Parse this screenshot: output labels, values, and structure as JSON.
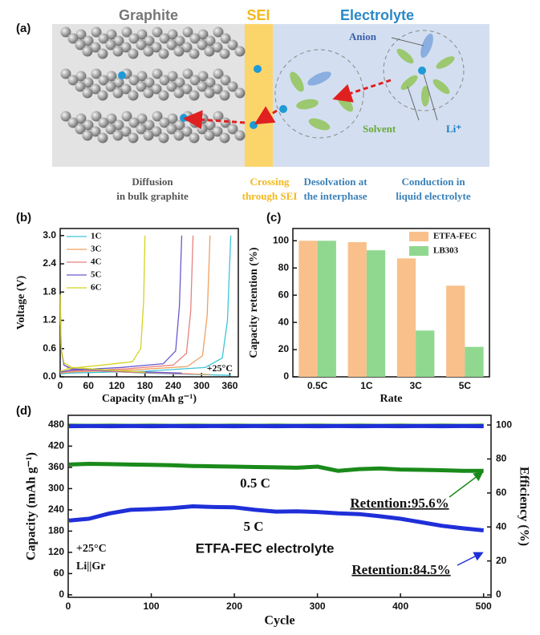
{
  "figure": {
    "panel_labels": [
      "(a)",
      "(b)",
      "(c)",
      "(d)"
    ]
  },
  "diagram": {
    "regions": [
      "Graphite",
      "SEI",
      "Electrolyte"
    ],
    "labels": [
      "Anion",
      "Solvent",
      "Li⁺"
    ],
    "captions": [
      [
        "Diffusion",
        "in bulk graphite"
      ],
      [
        "Crossing",
        "through SEI"
      ],
      [
        "Desolvation at",
        "the interphase"
      ],
      [
        "Conduction in",
        "liquid electrolyte"
      ]
    ]
  },
  "chart_data": [
    {
      "type": "line",
      "xlabel": "Capacity (mAh g⁻¹)",
      "ylabel": "Voltage (V)",
      "xlim": [
        0,
        378
      ],
      "xticks": [
        0,
        60,
        120,
        180,
        240,
        300,
        360
      ],
      "ylim": [
        0,
        3.15
      ],
      "yticks": [
        {
          "value": 0,
          "label": "0.0"
        },
        0.6,
        1.2,
        1.8,
        2.4,
        {
          "value": 3,
          "label": "3.0"
        }
      ],
      "legend": "upper left",
      "annotations": [
        {
          "text": "+25°C",
          "color": "#111"
        }
      ],
      "series": [
        {
          "name": "1C",
          "color": "#3ec5d8",
          "x": [
            0,
            2,
            8,
            25,
            181,
            362,
            null,
            0,
            20,
            181,
            308,
            344,
            355,
            362
          ],
          "values": [
            1.55,
            0.6,
            0.25,
            0.15,
            0.08,
            0.03,
            null,
            0.06,
            0.08,
            0.12,
            0.2,
            0.4,
            1.2,
            3.0
          ]
        },
        {
          "name": "3C",
          "color": "#f0a060",
          "x": [
            0,
            2,
            8,
            25,
            159,
            318,
            null,
            0,
            20,
            159,
            270,
            302,
            312,
            318
          ],
          "values": [
            1.6,
            0.6,
            0.25,
            0.15,
            0.1,
            0.05,
            null,
            0.08,
            0.1,
            0.15,
            0.22,
            0.45,
            1.3,
            3.0
          ]
        },
        {
          "name": "4C",
          "color": "#e88080",
          "x": [
            0,
            2,
            8,
            25,
            141,
            282,
            null,
            0,
            20,
            141,
            240,
            268,
            277,
            282
          ],
          "values": [
            1.65,
            0.6,
            0.25,
            0.15,
            0.1,
            0.06,
            null,
            0.1,
            0.12,
            0.17,
            0.25,
            0.5,
            1.4,
            3.0
          ]
        },
        {
          "name": "5C",
          "color": "#6a5acd",
          "x": [
            0,
            2,
            8,
            25,
            129,
            258,
            null,
            0,
            20,
            129,
            219,
            245,
            253,
            258
          ],
          "values": [
            1.7,
            0.6,
            0.25,
            0.17,
            0.12,
            0.08,
            null,
            0.1,
            0.14,
            0.2,
            0.28,
            0.55,
            1.5,
            3.0
          ]
        },
        {
          "name": "6C",
          "color": "#d4d420",
          "x": [
            0,
            2,
            8,
            25,
            90,
            180,
            null,
            0,
            20,
            90,
            153,
            171,
            177,
            180
          ],
          "values": [
            1.75,
            0.6,
            0.3,
            0.2,
            0.15,
            0.1,
            null,
            0.12,
            0.18,
            0.25,
            0.32,
            0.6,
            1.6,
            3.0
          ]
        }
      ]
    },
    {
      "type": "bar",
      "xlabel": "Rate",
      "ylabel": "Capacity retention (%)",
      "categories": [
        "0.5C",
        "1C",
        "3C",
        "5C"
      ],
      "ylim": [
        0,
        109
      ],
      "yticks": [
        0,
        20,
        40,
        60,
        80,
        100
      ],
      "legend": "upper right",
      "series": [
        {
          "name": "ETFA-FEC",
          "color": "#f9c08c",
          "values": [
            100,
            99,
            87,
            67
          ]
        },
        {
          "name": "LB303",
          "color": "#90d890",
          "values": [
            100,
            93,
            34,
            22
          ]
        }
      ]
    },
    {
      "type": "line",
      "xlabel": "Cycle",
      "ylabel": "Capacity (mAh g⁻¹)",
      "y2label": "Efficiency (%)",
      "xlim": [
        0,
        509
      ],
      "xticks": [
        0,
        100,
        200,
        300,
        400,
        500
      ],
      "ylim": [
        -7,
        507
      ],
      "yticks": [
        0,
        60,
        120,
        180,
        240,
        300,
        360,
        420,
        480
      ],
      "y2lim": [
        -1.4,
        105.7
      ],
      "y2ticks": [
        0,
        20,
        40,
        60,
        80,
        100
      ],
      "x": [
        1,
        25,
        50,
        75,
        100,
        125,
        150,
        175,
        200,
        225,
        250,
        275,
        300,
        325,
        350,
        375,
        400,
        425,
        450,
        475,
        500
      ],
      "annotations": [
        {
          "text": "0.5 C",
          "color": "#1a7a1a"
        },
        {
          "text": "5 C",
          "color": "#1a1ab4"
        },
        {
          "text": "ETFA-FEC electrolyte",
          "color": "#111"
        },
        {
          "text": "Retention:95.6%",
          "color": "#1a7a1a"
        },
        {
          "text": "Retention:84.5%",
          "color": "#1a1ab4"
        },
        {
          "text": "+25°C",
          "color": "#111"
        },
        {
          "text": "Li||Gr",
          "color": "#111"
        }
      ],
      "series": [
        {
          "color": "#1a8a1a",
          "values": [
            368,
            370,
            369,
            368,
            367,
            366,
            364,
            363,
            362,
            361,
            360,
            359,
            362,
            350,
            355,
            357,
            354,
            353,
            352,
            350,
            350
          ]
        },
        {
          "color": "#1f2fd8",
          "values": [
            210,
            215,
            230,
            240,
            242,
            245,
            250,
            248,
            247,
            240,
            235,
            236,
            234,
            230,
            228,
            222,
            215,
            205,
            195,
            188,
            182
          ]
        },
        {
          "color": "#1a8a1a",
          "axis": "y2",
          "values": [
            99.6,
            99.5,
            99.6,
            99.5,
            99.6,
            99.5,
            99.6,
            99.5,
            99.6,
            99.5,
            99.6,
            99.5,
            99.6,
            99.5,
            99.6,
            99.5,
            99.6,
            99.5,
            99.6,
            99.5,
            99.6
          ]
        },
        {
          "color": "#1f2fd8",
          "axis": "y2",
          "values": [
            99.3,
            99.4,
            99.3,
            99.4,
            99.3,
            99.4,
            99.3,
            99.4,
            99.3,
            99.4,
            99.3,
            99.4,
            99.3,
            99.4,
            99.3,
            99.4,
            99.3,
            99.4,
            99.3,
            99.4,
            99.3
          ]
        }
      ]
    }
  ]
}
